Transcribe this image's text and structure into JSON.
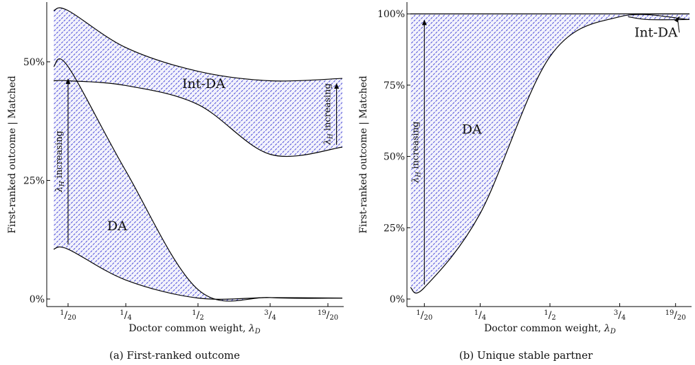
{
  "chart_data": [
    {
      "type": "area",
      "caption": "(a) First-ranked outcome",
      "xlabel": "Doctor common weight, λ_D",
      "ylabel": "First-ranked outcome | Matched",
      "x_ticks": [
        {
          "value": 0.05,
          "label": "1/20"
        },
        {
          "value": 0.25,
          "label": "1/4"
        },
        {
          "value": 0.5,
          "label": "1/2"
        },
        {
          "value": 0.75,
          "label": "3/4"
        },
        {
          "value": 0.95,
          "label": "19/20"
        }
      ],
      "y_ticks": [
        {
          "value": 0,
          "label": "0%"
        },
        {
          "value": 25,
          "label": "25%"
        },
        {
          "value": 50,
          "label": "50%"
        }
      ],
      "xlim": [
        0.0,
        1.0
      ],
      "ylim": [
        0,
        61
      ],
      "band_color": "#5a5ae0",
      "series": [
        {
          "name": "Int-DA",
          "x": [
            0.0,
            0.05,
            0.25,
            0.5,
            0.75,
            1.0
          ],
          "lower": [
            46.0,
            46.0,
            45.0,
            41.0,
            30.5,
            32.0
          ],
          "upper": [
            60.8,
            60.8,
            53.0,
            48.0,
            46.0,
            46.5
          ]
        },
        {
          "name": "DA",
          "x": [
            0.0,
            0.05,
            0.25,
            0.5,
            0.75,
            1.0
          ],
          "lower": [
            10.5,
            10.5,
            4.0,
            0.2,
            0.3,
            0.2
          ],
          "upper": [
            49.0,
            49.0,
            27.0,
            2.0,
            0.3,
            0.2
          ]
        }
      ],
      "annotations": [
        {
          "text": "Int-DA",
          "x": 0.52,
          "y": 44.5
        },
        {
          "text": "DA",
          "x": 0.22,
          "y": 14.5
        },
        {
          "text": "λ_H increasing",
          "x": 0.05,
          "type": "arrow",
          "from": 11.5,
          "to": 46.5
        },
        {
          "text": "λ_H increasing",
          "x": 0.98,
          "type": "arrow",
          "from": 32.5,
          "to": 45.5
        }
      ]
    },
    {
      "type": "area",
      "caption": "(b) Unique stable partner",
      "xlabel": "Doctor common weight, λ_D",
      "ylabel": "First-ranked outcome | Matched",
      "x_ticks": [
        {
          "value": 0.05,
          "label": "1/20"
        },
        {
          "value": 0.25,
          "label": "1/4"
        },
        {
          "value": 0.5,
          "label": "1/2"
        },
        {
          "value": 0.75,
          "label": "3/4"
        },
        {
          "value": 0.95,
          "label": "19/20"
        }
      ],
      "y_ticks": [
        {
          "value": 0,
          "label": "0%"
        },
        {
          "value": 25,
          "label": "25%"
        },
        {
          "value": 50,
          "label": "50%"
        },
        {
          "value": 75,
          "label": "75%"
        },
        {
          "value": 100,
          "label": "100%"
        }
      ],
      "xlim": [
        0.0,
        1.0
      ],
      "ylim": [
        0,
        101
      ],
      "band_color": "#5a5ae0",
      "series": [
        {
          "name": "DA",
          "x": [
            0.0,
            0.05,
            0.25,
            0.5,
            0.75,
            1.0
          ],
          "lower": [
            4.0,
            4.0,
            30.0,
            85.0,
            99.0,
            98.0
          ],
          "upper": [
            100,
            100,
            100,
            100,
            100,
            100
          ]
        },
        {
          "name": "Int-DA",
          "x": [
            0.78,
            0.85,
            1.0
          ],
          "lower": [
            99.0,
            98.0,
            98.0
          ],
          "upper": [
            100,
            100,
            100
          ]
        }
      ],
      "annotations": [
        {
          "text": "DA",
          "x": 0.22,
          "y": 58
        },
        {
          "text": "Int-DA",
          "x": 0.88,
          "y": 92
        },
        {
          "text": "λ_H increasing",
          "x": 0.05,
          "type": "arrow",
          "from": 5,
          "to": 98
        }
      ]
    }
  ]
}
